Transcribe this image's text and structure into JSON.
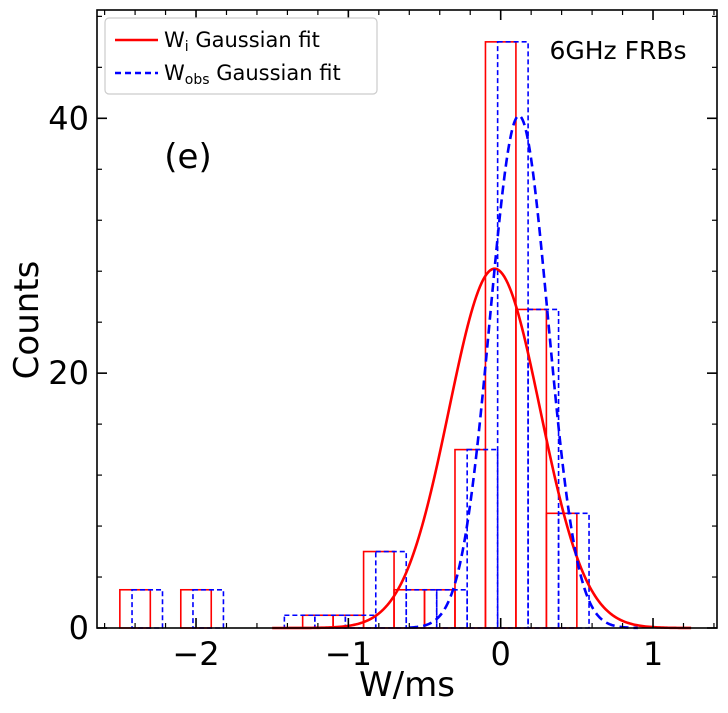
{
  "chart_data": {
    "type": "histogram",
    "xlabel": "W/ms",
    "ylabel": "Counts",
    "xlim": [
      -2.65,
      1.42
    ],
    "ylim": [
      0,
      48.5
    ],
    "x_ticks": [
      -2,
      -1,
      0,
      1
    ],
    "x_tick_labels": [
      "−2",
      "−1",
      "0",
      "1"
    ],
    "y_ticks": [
      0,
      20,
      40
    ],
    "y_tick_labels": [
      "0",
      "20",
      "40"
    ],
    "annotations": {
      "panel": "(e)",
      "label": "6GHz FRBs"
    },
    "legend": {
      "position": "top-left",
      "entries": [
        {
          "base": "W",
          "sub": "i",
          "rest": " Gaussian fit",
          "color": "#ff0000",
          "style": "solid"
        },
        {
          "base": "W",
          "sub": "obs",
          "rest": " Gaussian fit",
          "color": "#0000ff",
          "style": "dashed"
        }
      ]
    },
    "series": [
      {
        "name": "W_i histogram",
        "kind": "step",
        "color": "#ff0000",
        "style": "solid",
        "edges": [
          -2.5,
          -2.3,
          -2.1,
          -1.9,
          -1.7,
          -1.5,
          -1.3,
          -1.1,
          -0.9,
          -0.7,
          -0.5,
          -0.3,
          -0.1,
          0.1,
          0.3,
          0.5
        ],
        "counts": [
          3,
          0,
          3,
          0,
          0,
          0,
          1,
          1,
          6,
          3,
          3,
          14,
          46,
          25,
          9
        ]
      },
      {
        "name": "W_obs histogram",
        "kind": "step",
        "color": "#0000ff",
        "style": "dashed",
        "edges": [
          -2.42,
          -2.22,
          -2.02,
          -1.82,
          -1.62,
          -1.42,
          -1.22,
          -1.02,
          -0.82,
          -0.62,
          -0.42,
          -0.22,
          -0.02,
          0.18,
          0.38,
          0.58
        ],
        "counts": [
          3,
          0,
          3,
          0,
          0,
          1,
          1,
          1,
          6,
          3,
          3,
          14,
          46,
          25,
          9
        ]
      },
      {
        "name": "W_i Gaussian fit",
        "kind": "gaussian",
        "color": "#ff0000",
        "style": "solid",
        "amplitude": 28.2,
        "mean": -0.04,
        "sigma": 0.3,
        "x_range": [
          -1.5,
          1.25
        ]
      },
      {
        "name": "W_obs Gaussian fit",
        "kind": "gaussian",
        "color": "#0000ff",
        "style": "dashed",
        "amplitude": 40.2,
        "mean": 0.12,
        "sigma": 0.19,
        "x_range": [
          -0.6,
          0.9
        ]
      }
    ]
  }
}
